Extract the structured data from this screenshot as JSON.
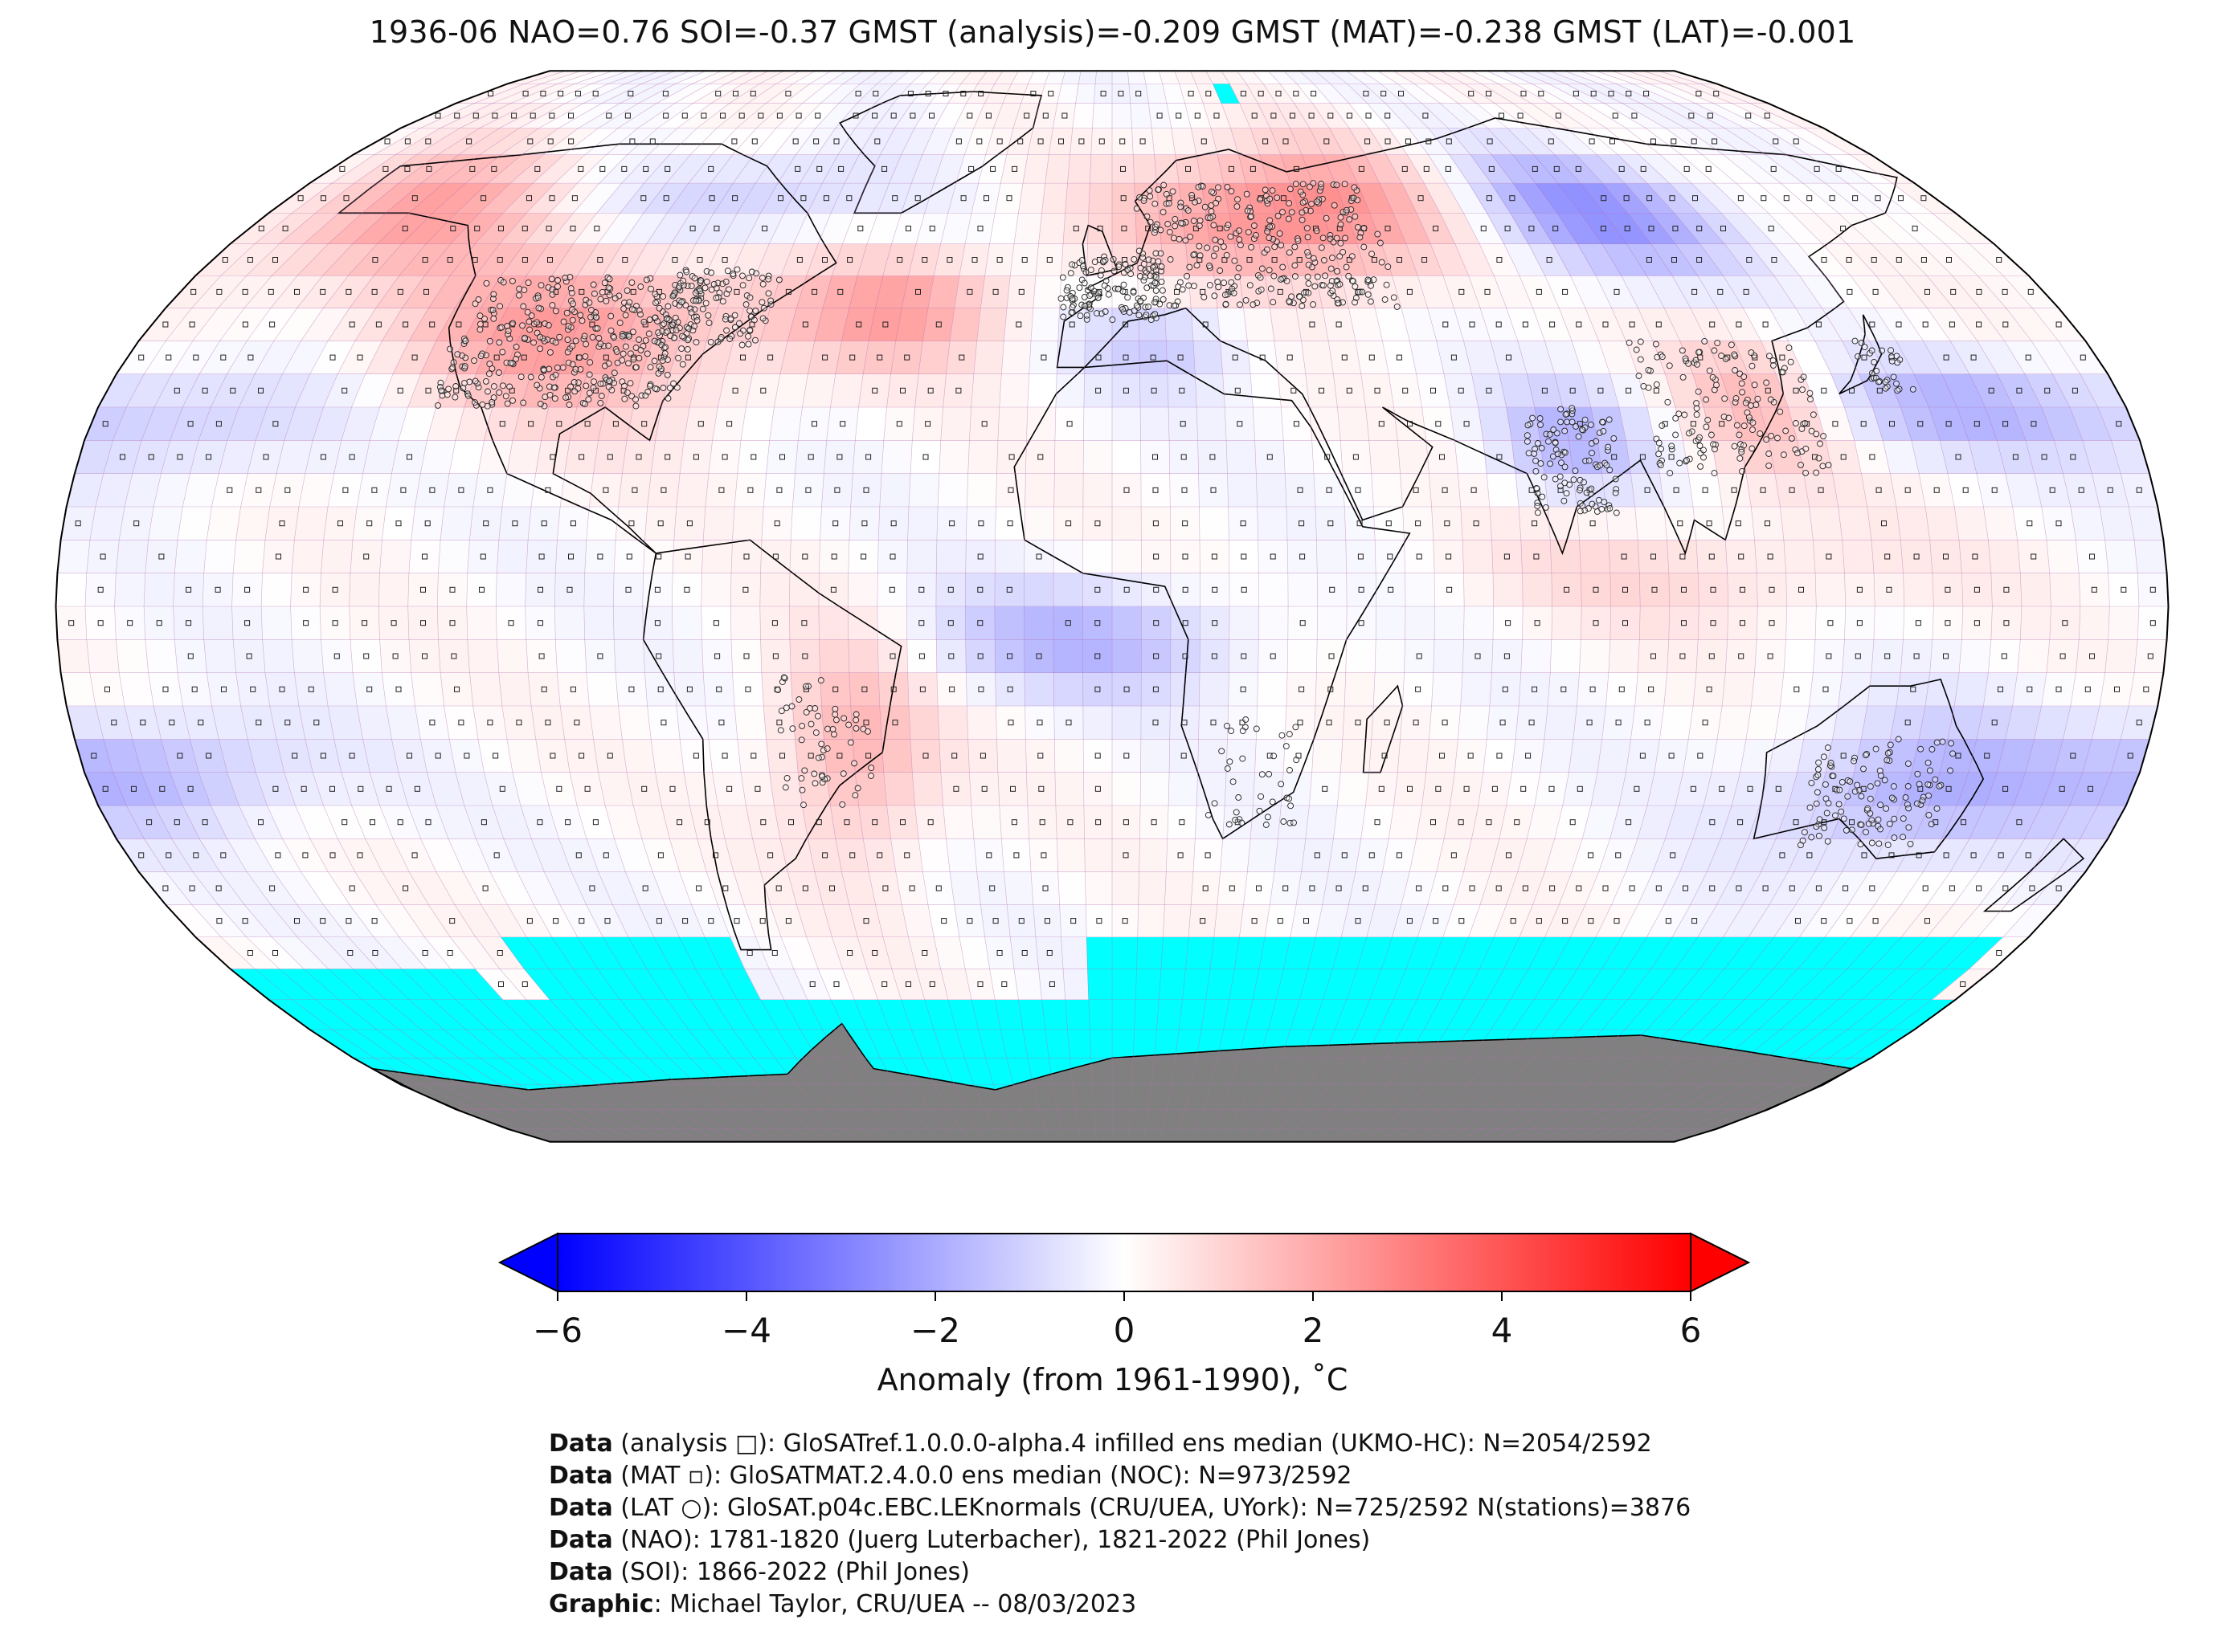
{
  "title": "1936-06 NAO=0.76 SOI=-0.37 GMST (analysis)=-0.209 GMST (MAT)=-0.238 GMST (LAT)=-0.001",
  "colorbar": {
    "ticks": [
      "−6",
      "−4",
      "−2",
      "0",
      "2",
      "4",
      "6"
    ],
    "label": "Anomaly (from 1961-1990), ˚C",
    "min_color": "#0000ff",
    "mid_color": "#ffffff",
    "max_color": "#ff0000",
    "range": [
      -6,
      6
    ]
  },
  "map": {
    "projection": "Robinson",
    "no_data_color": "#00ffff",
    "land_mask_color": "#808080",
    "grid_color": "#b070b0"
  },
  "credits": [
    {
      "key": "Data",
      "text": " (analysis □): GloSATref.1.0.0.0-alpha.4 infilled ens median (UKMO-HC): N=2054/2592"
    },
    {
      "key": "Data",
      "text": " (MAT ▫): GloSATMAT.2.4.0.0 ens median (NOC): N=973/2592"
    },
    {
      "key": "Data",
      "text": " (LAT ○): GloSAT.p04c.EBC.LEKnormals (CRU/UEA, UYork): N=725/2592 N(stations)=3876"
    },
    {
      "key": "Data",
      "text": " (NAO): 1781-1820 (Juerg Luterbacher), 1821-2022 (Phil Jones)"
    },
    {
      "key": "Data",
      "text": " (SOI): 1866-2022 (Phil Jones)"
    },
    {
      "key": "Graphic",
      "text": ": Michael Taylor, CRU/UEA -- 08/03/2023"
    }
  ]
}
